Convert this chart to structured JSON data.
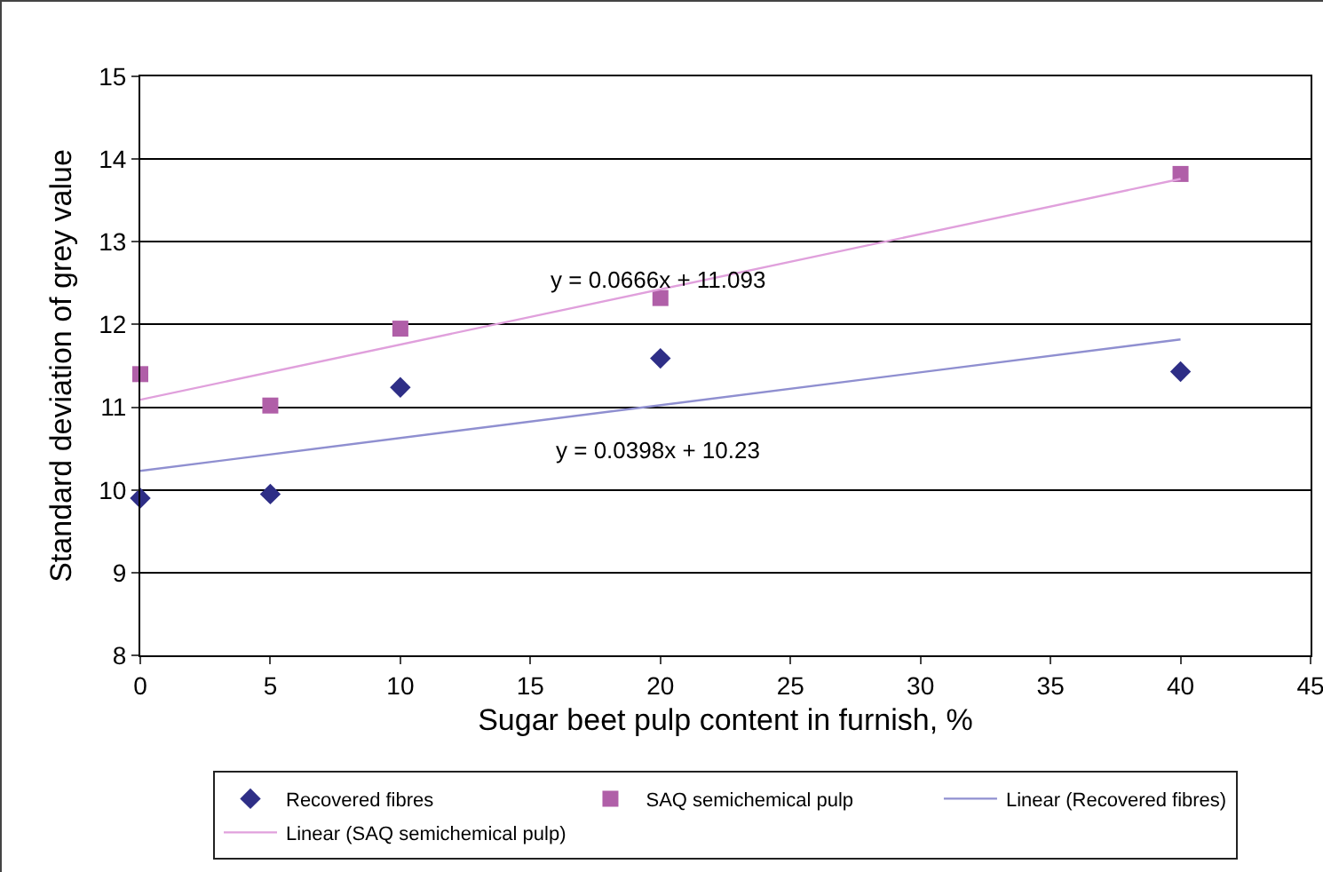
{
  "chart_data": {
    "type": "scatter",
    "xlabel": "Sugar beet pulp content in furnish, %",
    "ylabel": "Standard deviation of grey value",
    "xlim": [
      0,
      45
    ],
    "xticks": [
      0,
      5,
      10,
      15,
      20,
      25,
      30,
      35,
      40,
      45
    ],
    "ylim": [
      8,
      15
    ],
    "yticks": [
      8,
      9,
      10,
      11,
      12,
      13,
      14,
      15
    ],
    "grid": "y",
    "legend": "bottom",
    "series": [
      {
        "name": "Recovered fibres",
        "marker": "diamond",
        "color": "#2e2e86",
        "x": [
          0,
          5,
          10,
          20,
          40
        ],
        "values": [
          9.9,
          9.95,
          11.24,
          11.59,
          11.43
        ]
      },
      {
        "name": "SAQ semichemical pulp",
        "marker": "square",
        "color": "#b05fa8",
        "x": [
          0,
          5,
          10,
          20,
          40
        ],
        "values": [
          11.4,
          11.02,
          11.95,
          12.32,
          13.82
        ]
      },
      {
        "name": "Linear (Recovered fibres)",
        "type": "line",
        "marker": "none",
        "line_style": "solid",
        "color": "#8f8fd0",
        "x": [
          0,
          40
        ],
        "values": [
          10.23,
          11.82
        ]
      },
      {
        "name": "Linear (SAQ semichemical pulp)",
        "type": "line",
        "marker": "none",
        "line_style": "solid",
        "color": "#e0a0dc",
        "x": [
          0,
          40
        ],
        "values": [
          11.09,
          13.76
        ]
      }
    ],
    "annotations": [
      "y = 0.0666x + 11.093",
      "y = 0.0398x + 10.23"
    ]
  }
}
